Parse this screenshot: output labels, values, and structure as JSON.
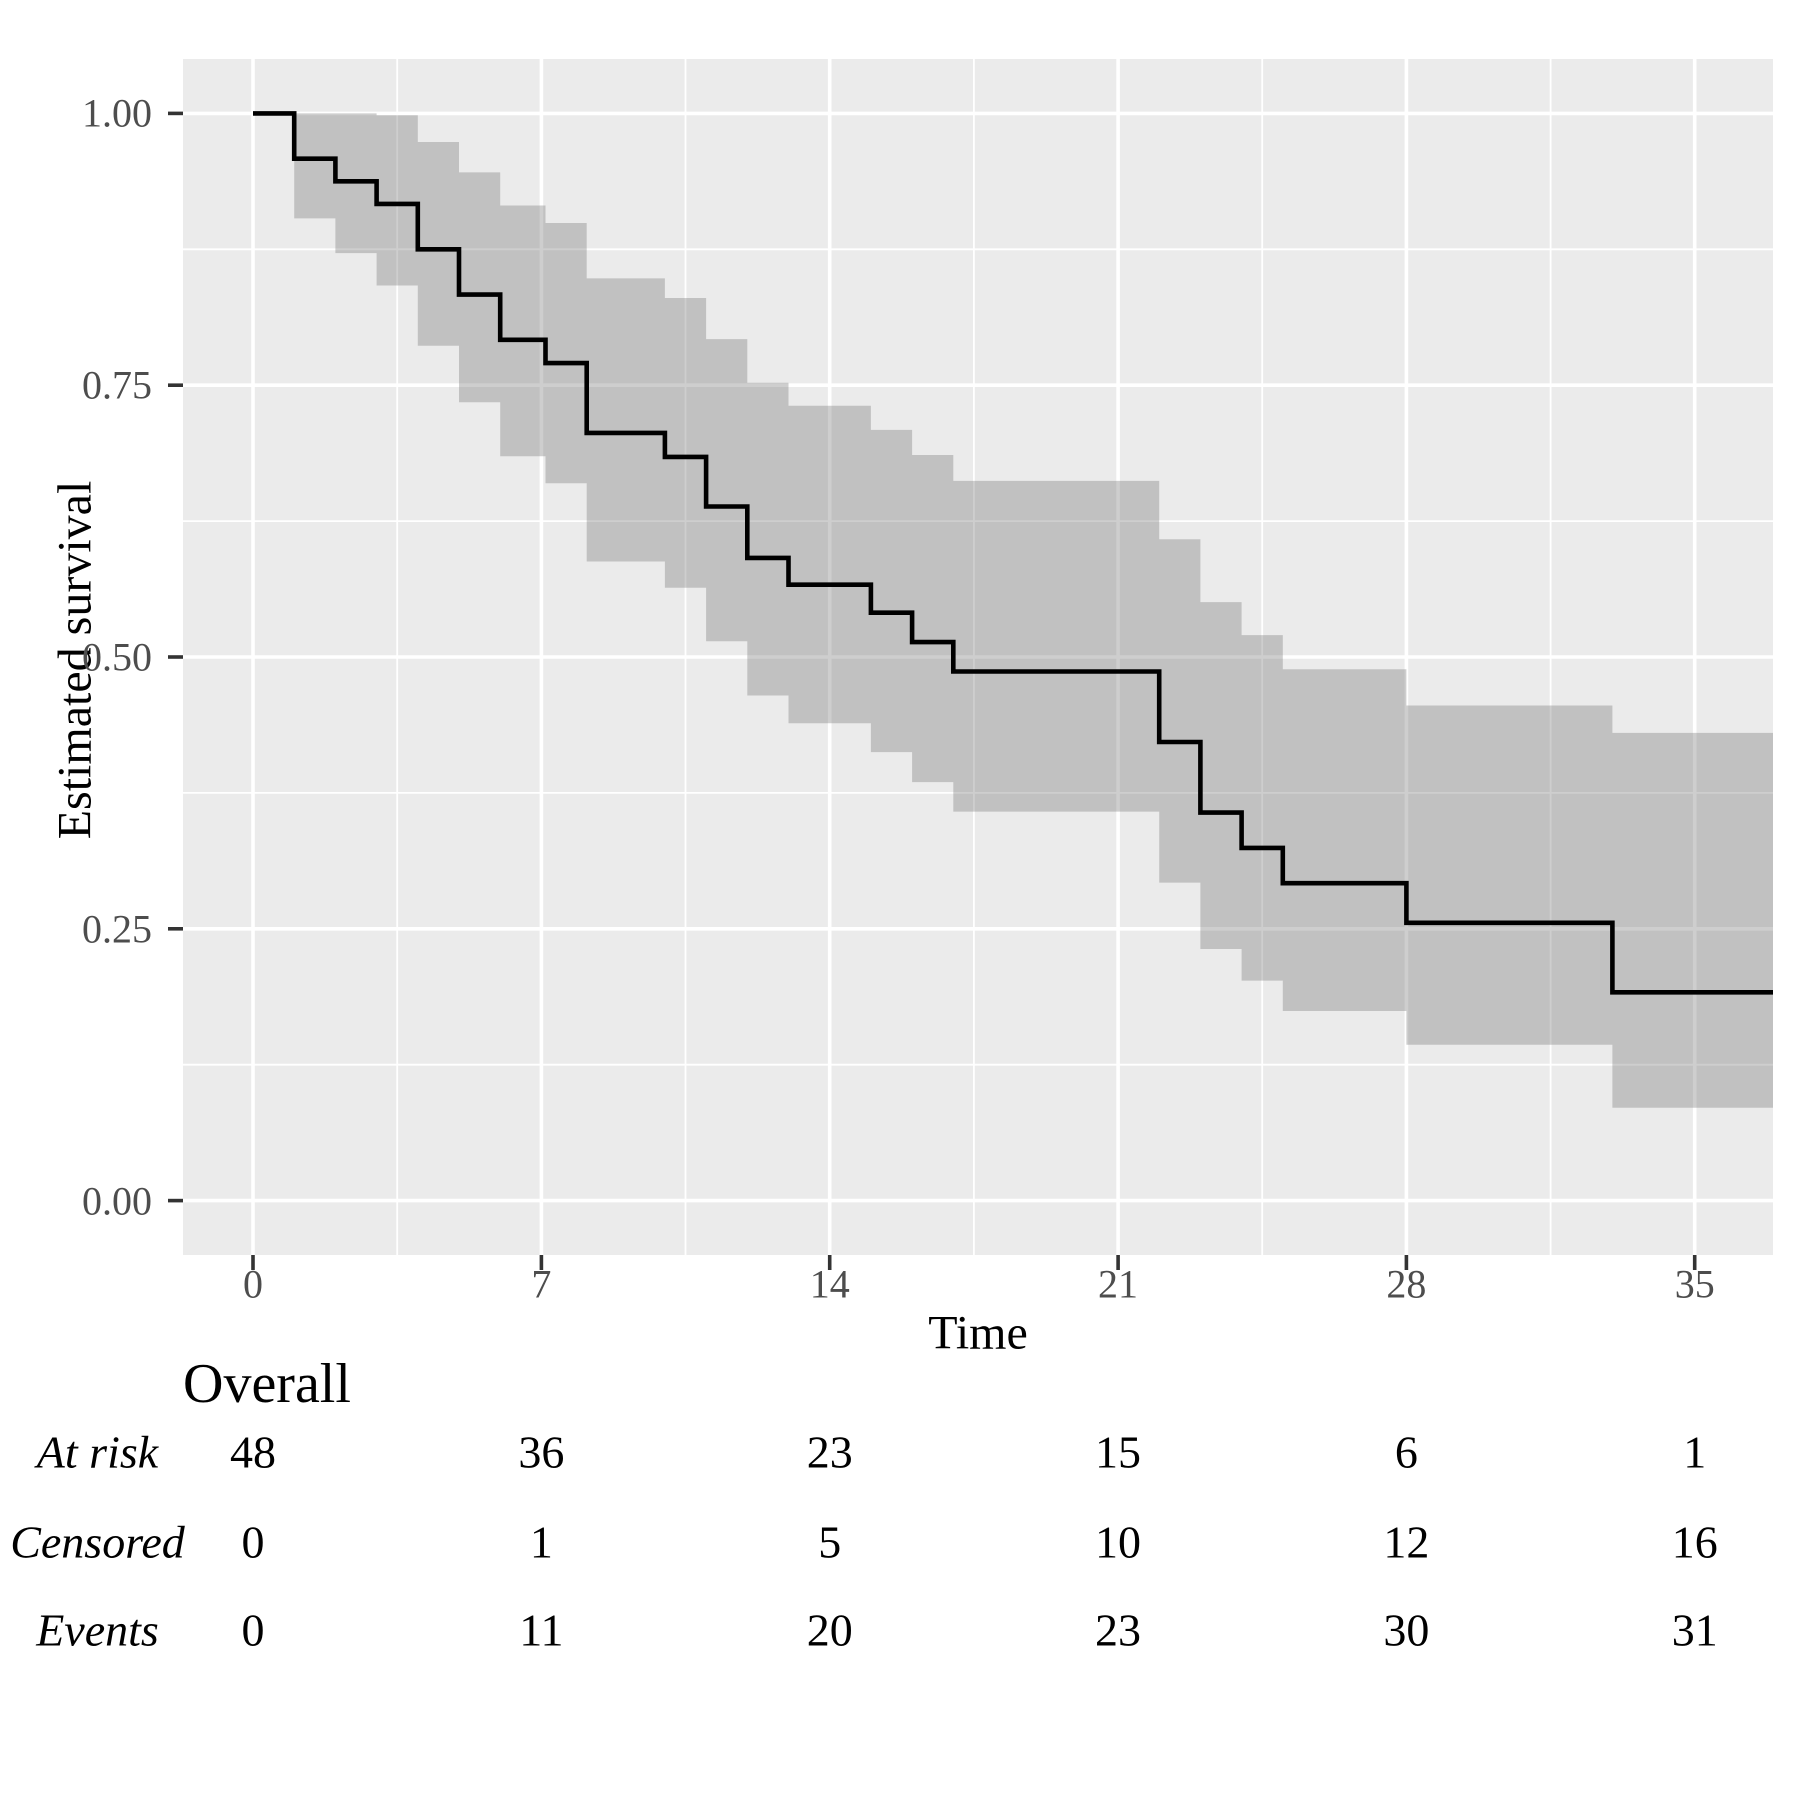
{
  "chart_data": {
    "type": "line",
    "subtype": "kaplan-meier-step-with-ci-ribbon",
    "title": "",
    "xlabel": "Time",
    "ylabel": "Estimated survival",
    "x_ticks": [
      0,
      7,
      14,
      21,
      28,
      35
    ],
    "x_tick_labels": [
      "0",
      "7",
      "14",
      "21",
      "28",
      "35"
    ],
    "y_ticks": [
      1.0,
      0.75,
      0.5,
      0.25,
      0.0
    ],
    "y_tick_labels": [
      "1.00",
      "0.75",
      "0.50",
      "0.25",
      "0.00"
    ],
    "x_minor_ticks": [
      3.5,
      10.5,
      17.5,
      24.5,
      31.5
    ],
    "y_minor_ticks": [
      0.875,
      0.625,
      0.375,
      0.125
    ],
    "xlim": [
      -1.7,
      36.9
    ],
    "ylim": [
      -0.05,
      1.05
    ],
    "grid": "white major+minor gridlines on grey panel",
    "legend": "none",
    "end_time": 36.9,
    "km_steps": [
      {
        "t": 0,
        "s": 1.0,
        "lo": 1.0,
        "up": 1.0
      },
      {
        "t": 1,
        "s": 0.9583,
        "lo": 0.9034,
        "up": 1.0
      },
      {
        "t": 2,
        "s": 0.9375,
        "lo": 0.8715,
        "up": 1.0
      },
      {
        "t": 3,
        "s": 0.9167,
        "lo": 0.8417,
        "up": 0.9983
      },
      {
        "t": 4,
        "s": 0.875,
        "lo": 0.7863,
        "up": 0.9737
      },
      {
        "t": 5,
        "s": 0.8333,
        "lo": 0.7343,
        "up": 0.9457
      },
      {
        "t": 6,
        "s": 0.7917,
        "lo": 0.6847,
        "up": 0.9153
      },
      {
        "t": 7.1,
        "s": 0.7703,
        "lo": 0.6598,
        "up": 0.8992
      },
      {
        "t": 8.1,
        "s": 0.7061,
        "lo": 0.5878,
        "up": 0.8482
      },
      {
        "t": 10,
        "s": 0.684,
        "lo": 0.5636,
        "up": 0.8302
      },
      {
        "t": 11,
        "s": 0.6384,
        "lo": 0.5144,
        "up": 0.7924
      },
      {
        "t": 12,
        "s": 0.5911,
        "lo": 0.4646,
        "up": 0.7522
      },
      {
        "t": 13,
        "s": 0.5665,
        "lo": 0.439,
        "up": 0.731
      },
      {
        "t": 15,
        "s": 0.5407,
        "lo": 0.4125,
        "up": 0.7089
      },
      {
        "t": 16,
        "s": 0.5137,
        "lo": 0.3849,
        "up": 0.6858
      },
      {
        "t": 17,
        "s": 0.4867,
        "lo": 0.3578,
        "up": 0.662
      },
      {
        "t": 22,
        "s": 0.4218,
        "lo": 0.2925,
        "up": 0.6083
      },
      {
        "t": 23,
        "s": 0.3569,
        "lo": 0.2314,
        "up": 0.5505
      },
      {
        "t": 24,
        "s": 0.3244,
        "lo": 0.2024,
        "up": 0.5201
      },
      {
        "t": 25,
        "s": 0.292,
        "lo": 0.1744,
        "up": 0.4888
      },
      {
        "t": 28,
        "s": 0.2555,
        "lo": 0.1434,
        "up": 0.4554
      },
      {
        "t": 33,
        "s": 0.1916,
        "lo": 0.0854,
        "up": 0.4302
      }
    ],
    "colors": {
      "panel": "#EBEBEB",
      "grid": "#FFFFFF",
      "ribbon_fill": "#7F7F7F",
      "ribbon_opacity": 0.38,
      "line": "#000000",
      "tick_mark": "#333333",
      "tick_label": "#4D4D4D",
      "text": "#000000"
    }
  },
  "risk_table": {
    "group_label": "Overall",
    "times": [
      0,
      7,
      14,
      21,
      28,
      35
    ],
    "rows": [
      {
        "label": "At risk",
        "values": [
          "48",
          "36",
          "23",
          "15",
          "6",
          "1"
        ]
      },
      {
        "label": "Censored",
        "values": [
          "0",
          "1",
          "5",
          "10",
          "12",
          "16"
        ]
      },
      {
        "label": "Events",
        "values": [
          "0",
          "11",
          "20",
          "23",
          "30",
          "31"
        ]
      }
    ]
  }
}
